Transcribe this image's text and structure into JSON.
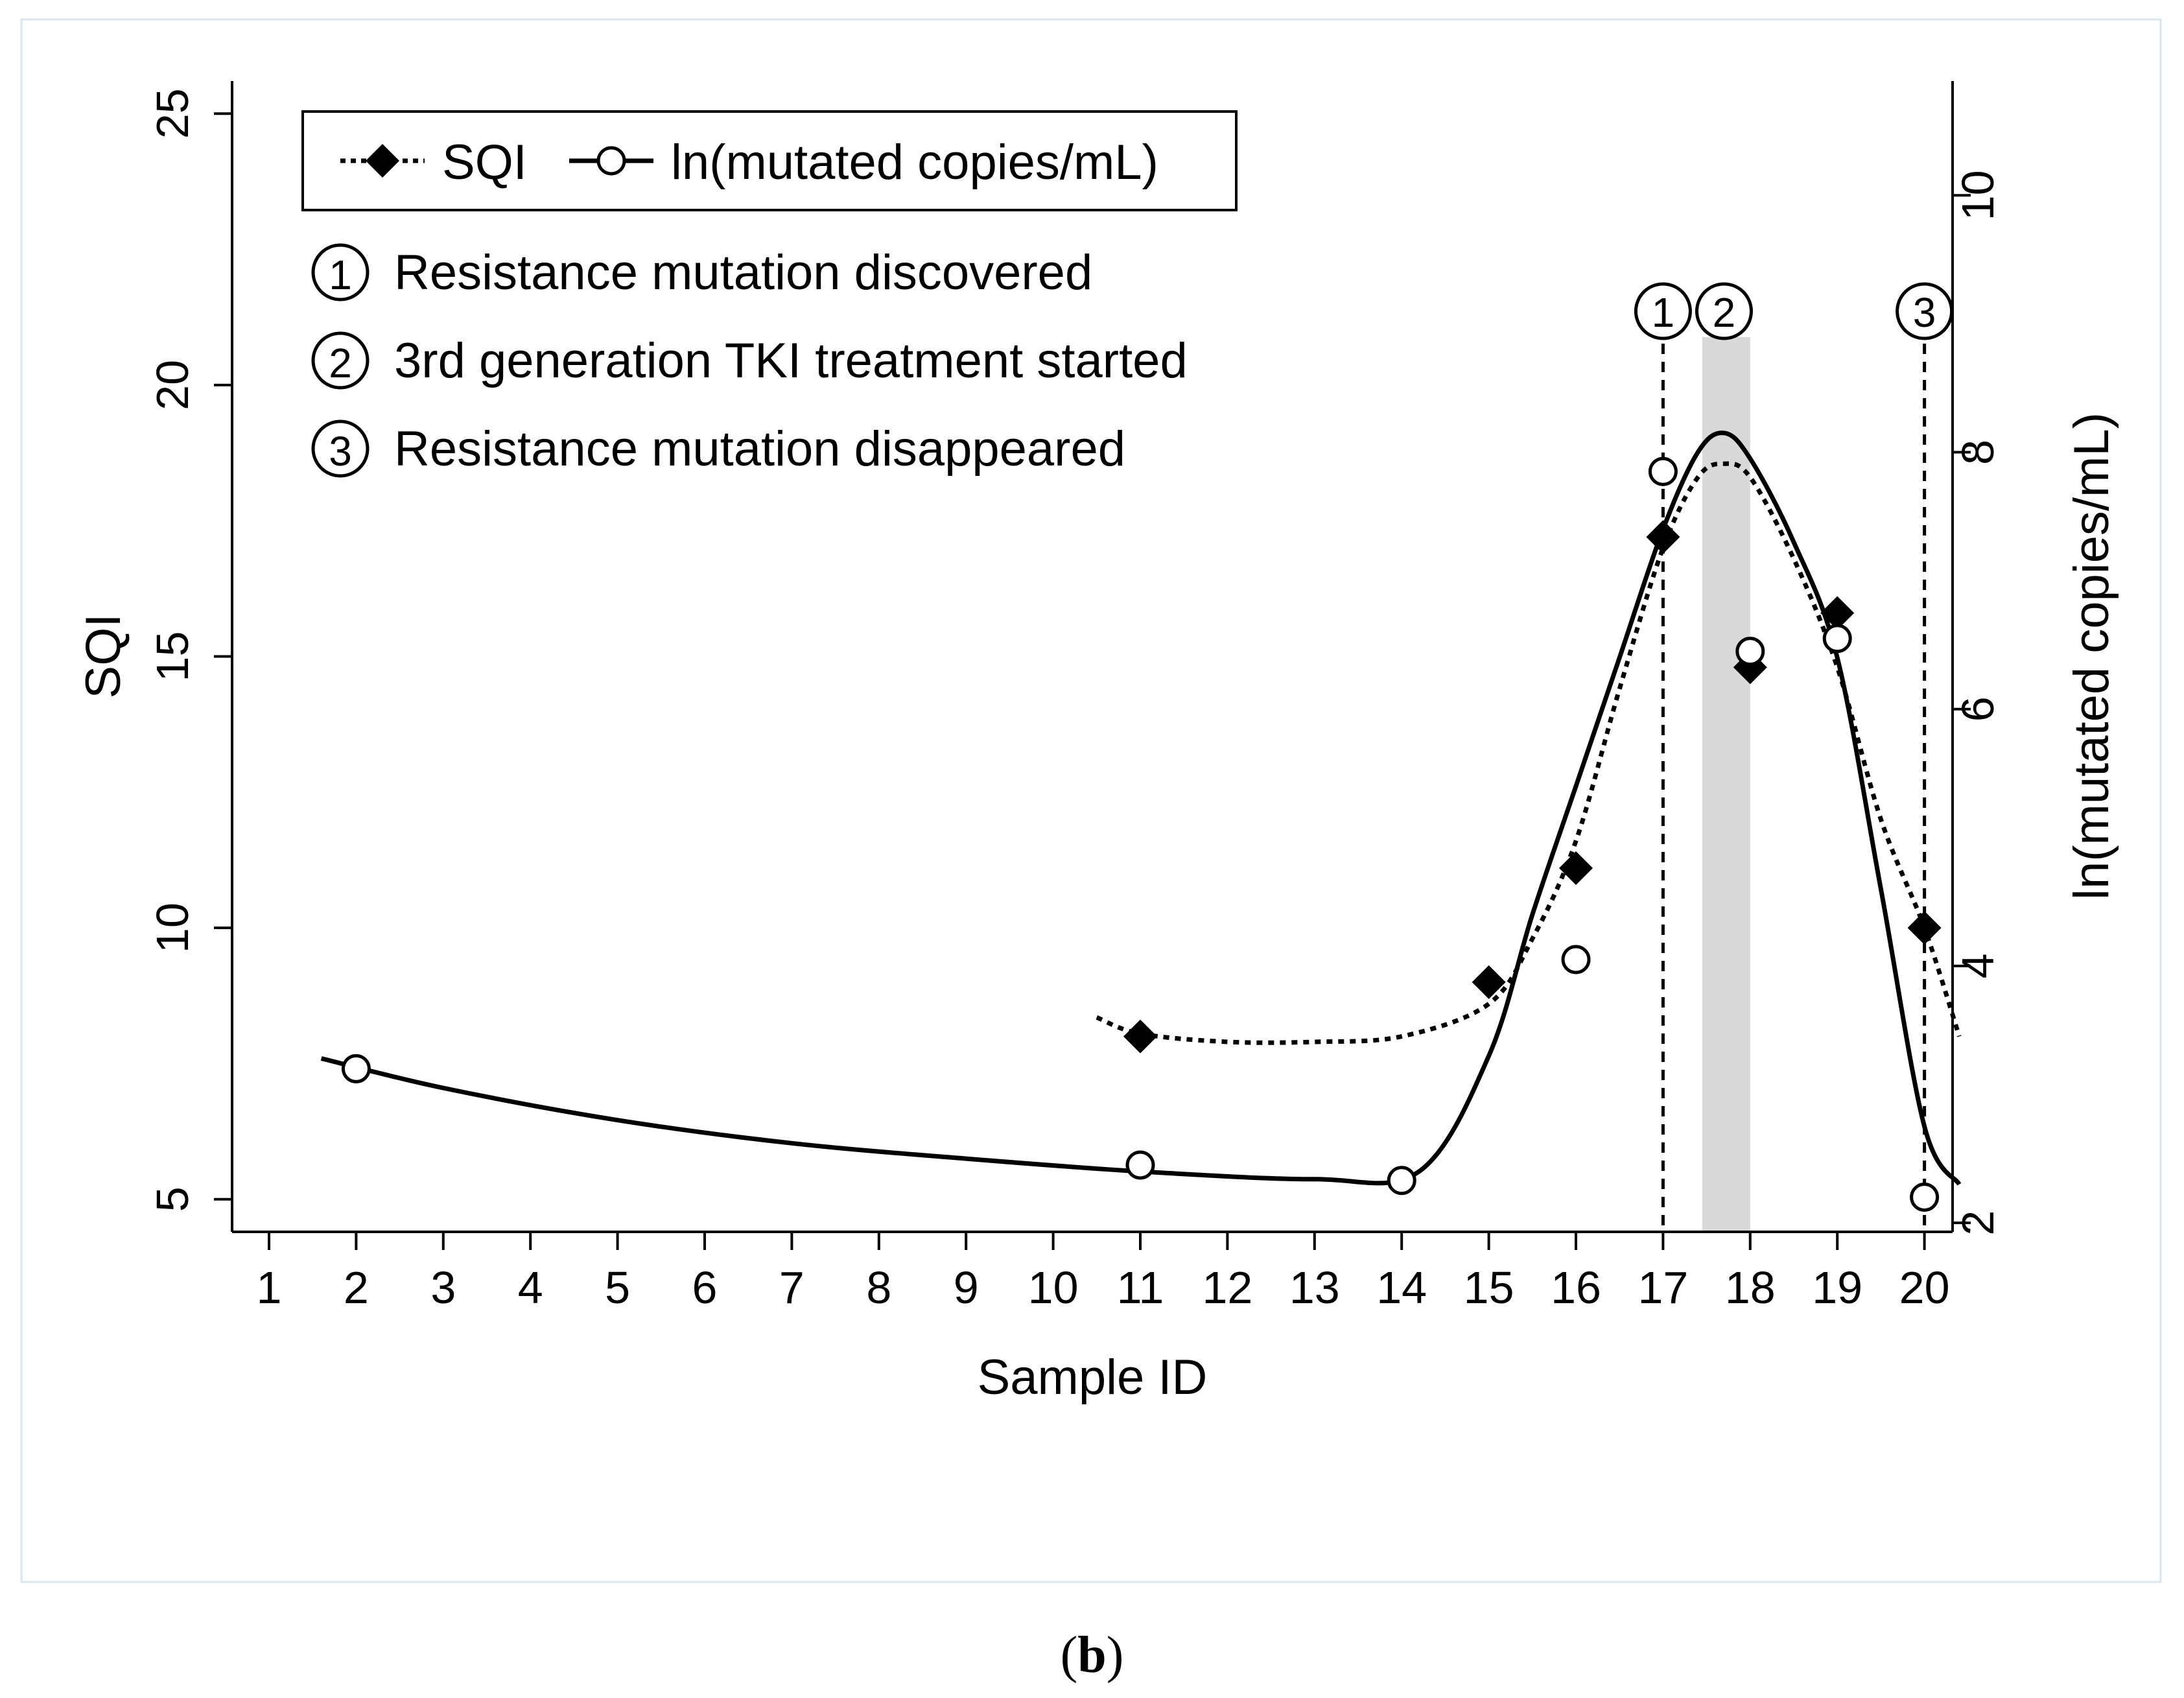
{
  "chart_data": {
    "type": "line",
    "xlabel": "Sample ID",
    "ylabel": "SQI",
    "y2label": "ln(mutated copies/mL)",
    "categories": [
      "1",
      "2",
      "3",
      "4",
      "5",
      "6",
      "7",
      "8",
      "9",
      "10",
      "11",
      "12",
      "13",
      "14",
      "15",
      "16",
      "17",
      "18",
      "19",
      "20"
    ],
    "ylim": [
      4.4,
      25.6
    ],
    "y2lim": [
      1.93,
      10.89
    ],
    "yticks": [
      "5",
      "10",
      "15",
      "20",
      "25"
    ],
    "y2ticks": [
      "2",
      "4",
      "6",
      "8",
      "10"
    ],
    "series": [
      {
        "name": "SQI",
        "axis": "left",
        "marker": "filled-diamond",
        "line": "dotted",
        "x": [
          11,
          15,
          16,
          17,
          18,
          19,
          20
        ],
        "values": [
          8.0,
          9.0,
          11.1,
          17.2,
          14.8,
          15.8,
          10.0
        ],
        "fit": [
          [
            10.5,
            8.35
          ],
          [
            11,
            8.05
          ],
          [
            12,
            7.9
          ],
          [
            13,
            7.9
          ],
          [
            14,
            8.0
          ],
          [
            15,
            8.6
          ],
          [
            15.5,
            9.8
          ],
          [
            16,
            11.6
          ],
          [
            16.5,
            14.4
          ],
          [
            17,
            17.0
          ],
          [
            17.4,
            18.3
          ],
          [
            17.7,
            18.55
          ],
          [
            18,
            18.3
          ],
          [
            18.5,
            16.8
          ],
          [
            19,
            14.8
          ],
          [
            19.5,
            12.0
          ],
          [
            20,
            10.0
          ],
          [
            20.4,
            8.0
          ]
        ]
      },
      {
        "name": "ln(mutated copies/mL)",
        "axis": "right",
        "marker": "hollow-circle",
        "line": "solid",
        "x": [
          2,
          11,
          14,
          16,
          17,
          18,
          19,
          20
        ],
        "values": [
          3.2,
          2.45,
          2.33,
          4.05,
          7.85,
          6.45,
          6.55,
          2.2
        ],
        "fit": [
          [
            1.6,
            3.28
          ],
          [
            3,
            3.05
          ],
          [
            5,
            2.8
          ],
          [
            7,
            2.62
          ],
          [
            9,
            2.5
          ],
          [
            11,
            2.4
          ],
          [
            13,
            2.34
          ],
          [
            14.2,
            2.4
          ],
          [
            15,
            3.3
          ],
          [
            15.5,
            4.4
          ],
          [
            16,
            5.4
          ],
          [
            16.5,
            6.4
          ],
          [
            17,
            7.4
          ],
          [
            17.4,
            8.0
          ],
          [
            17.7,
            8.15
          ],
          [
            18,
            7.95
          ],
          [
            18.5,
            7.3
          ],
          [
            19,
            6.4
          ],
          [
            19.5,
            4.6
          ],
          [
            20,
            2.75
          ],
          [
            20.4,
            2.3
          ]
        ]
      }
    ],
    "annotations": [
      {
        "marker": "1",
        "x": 17,
        "label": "Resistance mutation discovered",
        "style": "dashed-vline"
      },
      {
        "marker": "2",
        "x": 17.7,
        "label": "3rd generation TKI treatment started",
        "style": "shaded-band",
        "band": [
          17.45,
          18.0
        ]
      },
      {
        "marker": "3",
        "x": 20,
        "label": "Resistance mutation disappeared",
        "style": "dashed-vline"
      }
    ],
    "legend": {
      "position": "top-left",
      "entries": [
        "SQI",
        "ln(mutated copies/mL)"
      ]
    }
  },
  "caption": {
    "open": "(",
    "bold": "b",
    "close": ")"
  },
  "colors": {
    "band": "#d9d9d9",
    "line": "#000000",
    "frame": "#d9e6ee"
  }
}
